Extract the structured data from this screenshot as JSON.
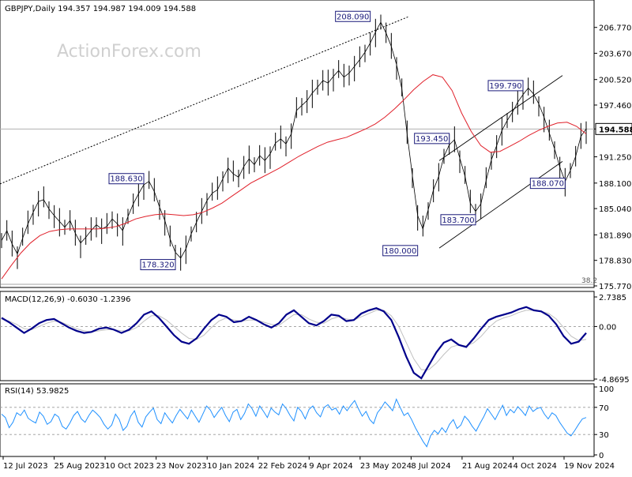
{
  "chart_data": [
    {
      "type": "candlestick",
      "title": "GBPJPY,Daily  194.357 194.987 194.009 194.588",
      "watermark": "ActionForex.com",
      "y_axis_ticks": [
        "206.770",
        "203.670",
        "200.520",
        "197.460",
        "194.588",
        "191.250",
        "188.100",
        "185.040",
        "181.890",
        "178.830",
        "175.770"
      ],
      "current_price": "194.588",
      "ylim": [
        175.77,
        209.3
      ],
      "price_series_approx": [
        181.2,
        182.4,
        180.8,
        179.6,
        181.5,
        183.2,
        184.6,
        185.9,
        186.1,
        185.0,
        184.2,
        183.5,
        182.8,
        183.6,
        182.1,
        180.9,
        181.6,
        182.4,
        183.1,
        182.6,
        182.9,
        183.8,
        183.2,
        182.4,
        184.1,
        185.6,
        186.8,
        187.9,
        188.3,
        187.1,
        185.2,
        183.6,
        181.4,
        179.8,
        179.1,
        180.2,
        182.0,
        183.4,
        184.7,
        186.0,
        186.9,
        187.3,
        188.6,
        189.9,
        189.2,
        188.8,
        190.1,
        191.0,
        190.3,
        191.4,
        190.8,
        191.6,
        192.9,
        193.4,
        192.8,
        194.0,
        196.8,
        197.4,
        198.0,
        198.9,
        199.6,
        200.4,
        200.1,
        200.9,
        201.6,
        200.8,
        201.3,
        202.1,
        202.9,
        203.8,
        204.9,
        206.2,
        207.4,
        206.1,
        204.5,
        202.3,
        199.4,
        194.0,
        189.0,
        184.2,
        182.6,
        184.9,
        187.3,
        188.9,
        191.3,
        192.7,
        193.3,
        191.1,
        188.9,
        185.7,
        184.7,
        185.6,
        188.4,
        190.9,
        192.6,
        194.4,
        195.6,
        196.6,
        197.8,
        198.7,
        199.5,
        198.8,
        197.6,
        196.0,
        194.1,
        192.2,
        190.0,
        188.3,
        189.6,
        191.3,
        193.7,
        194.6
      ],
      "ma_series_approx": [
        176.6,
        178.2,
        179.7,
        180.9,
        181.8,
        182.3,
        182.5,
        182.6,
        182.6,
        182.6,
        182.6,
        182.7,
        182.9,
        183.3,
        183.8,
        184.1,
        184.3,
        184.4,
        184.3,
        184.2,
        184.3,
        184.6,
        185.1,
        185.7,
        186.5,
        187.3,
        188.1,
        188.7,
        189.3,
        189.9,
        190.6,
        191.3,
        191.9,
        192.5,
        193.0,
        193.3,
        193.6,
        194.1,
        194.6,
        195.2,
        196.0,
        197.0,
        198.1,
        199.3,
        200.3,
        201.1,
        200.8,
        199.2,
        196.5,
        194.3,
        192.6,
        191.8,
        191.9,
        192.5,
        193.1,
        193.8,
        194.4,
        194.9,
        195.3,
        195.4,
        194.9,
        194.0
      ],
      "annotations": [
        {
          "label": "208.090",
          "value": 208.09,
          "anchor": "right"
        },
        {
          "label": "188.630",
          "value": 188.63,
          "anchor": "right"
        },
        {
          "label": "178.320",
          "value": 178.32,
          "anchor": "right"
        },
        {
          "label": "193.450",
          "value": 193.45,
          "anchor": "right"
        },
        {
          "label": "183.700",
          "value": 183.7,
          "anchor": "right"
        },
        {
          "label": "180.000",
          "value": 180.0,
          "anchor": "right"
        },
        {
          "label": "199.790",
          "value": 199.79,
          "anchor": "right"
        },
        {
          "label": "188.070",
          "value": 188.07,
          "anchor": "right"
        }
      ],
      "fib_label": "38.2",
      "colors": {
        "price": "#000000",
        "ma": "#e0202a",
        "grid": "#c0c0c0",
        "annotation_bg": "#ffffff",
        "annotation_border": "#1a1a7a",
        "annotation_text": "#1a1a7a",
        "dotted": "#000000"
      }
    },
    {
      "type": "line",
      "title": "MACD(12,26,9) -0.6030 -1.2396",
      "y_axis_ticks": [
        "2.7385",
        "0.00",
        "-4.8695"
      ],
      "ylim": [
        -4.8695,
        2.7385
      ],
      "macd_series_approx": [
        0.8,
        0.4,
        -0.1,
        -0.6,
        -0.2,
        0.3,
        0.6,
        0.7,
        0.3,
        -0.1,
        -0.4,
        -0.6,
        -0.5,
        -0.2,
        -0.1,
        -0.3,
        -0.6,
        -0.3,
        0.3,
        1.1,
        1.4,
        0.8,
        0.0,
        -0.8,
        -1.4,
        -1.6,
        -1.1,
        -0.2,
        0.6,
        1.1,
        0.9,
        0.4,
        0.5,
        0.9,
        0.6,
        0.2,
        -0.1,
        0.3,
        1.1,
        1.5,
        0.9,
        0.3,
        0.1,
        0.5,
        1.1,
        1.0,
        0.5,
        0.6,
        1.2,
        1.5,
        1.7,
        1.4,
        0.6,
        -1.0,
        -2.8,
        -4.3,
        -4.8,
        -3.6,
        -2.4,
        -1.5,
        -1.2,
        -1.7,
        -1.9,
        -1.1,
        -0.2,
        0.6,
        0.9,
        1.1,
        1.3,
        1.6,
        1.8,
        1.5,
        1.4,
        1.0,
        0.2,
        -0.9,
        -1.6,
        -1.4,
        -0.6
      ],
      "signal_series_approx": [
        0.7,
        0.5,
        0.2,
        -0.2,
        -0.3,
        0.0,
        0.3,
        0.5,
        0.4,
        0.1,
        -0.2,
        -0.4,
        -0.5,
        -0.4,
        -0.3,
        -0.3,
        -0.4,
        -0.4,
        -0.1,
        0.5,
        1.0,
        1.0,
        0.6,
        0.0,
        -0.6,
        -1.1,
        -1.2,
        -0.8,
        -0.1,
        0.5,
        0.8,
        0.6,
        0.5,
        0.6,
        0.6,
        0.4,
        0.2,
        0.1,
        0.6,
        1.1,
        1.1,
        0.7,
        0.4,
        0.3,
        0.7,
        0.9,
        0.7,
        0.6,
        0.9,
        1.2,
        1.5,
        1.5,
        1.0,
        0.0,
        -1.5,
        -3.0,
        -4.0,
        -4.0,
        -3.4,
        -2.6,
        -1.9,
        -1.7,
        -1.8,
        -1.5,
        -0.9,
        -0.1,
        0.5,
        0.8,
        1.0,
        1.3,
        1.5,
        1.5,
        1.4,
        1.2,
        0.7,
        -0.1,
        -0.9,
        -1.3,
        -1.2
      ],
      "colors": {
        "macd": "#00008b",
        "signal": "#c0c0c0"
      }
    },
    {
      "type": "line",
      "title": "RSI(14) 53.9825",
      "y_axis_ticks": [
        "100",
        "70",
        "30",
        "0"
      ],
      "ylim": [
        0,
        100
      ],
      "levels": [
        70,
        30
      ],
      "rsi_series_approx": [
        60,
        55,
        40,
        48,
        62,
        58,
        66,
        54,
        50,
        47,
        63,
        57,
        45,
        49,
        60,
        56,
        42,
        38,
        47,
        58,
        64,
        53,
        48,
        58,
        66,
        61,
        55,
        45,
        38,
        44,
        60,
        52,
        36,
        42,
        57,
        65,
        48,
        41,
        56,
        63,
        69,
        52,
        46,
        62,
        54,
        47,
        58,
        67,
        60,
        53,
        66,
        57,
        48,
        60,
        72,
        66,
        55,
        63,
        70,
        58,
        49,
        63,
        67,
        52,
        61,
        75,
        68,
        57,
        72,
        64,
        55,
        69,
        63,
        59,
        75,
        68,
        58,
        50,
        70,
        64,
        53,
        67,
        72,
        62,
        56,
        70,
        74,
        66,
        69,
        60,
        72,
        65,
        73,
        80,
        68,
        57,
        64,
        52,
        46,
        62,
        69,
        78,
        72,
        65,
        82,
        70,
        58,
        62,
        52,
        40,
        30,
        20,
        12,
        28,
        36,
        31,
        40,
        33,
        45,
        52,
        39,
        44,
        57,
        51,
        42,
        35,
        46,
        56,
        68,
        60,
        52,
        63,
        73,
        58,
        67,
        62,
        71,
        65,
        58,
        72,
        64,
        68,
        70,
        60,
        53,
        62,
        58,
        48,
        40,
        32,
        28,
        36,
        45,
        53,
        55
      ]
    }
  ],
  "x_axis": {
    "labels": [
      "12 Jul 2023",
      "25 Aug 2023",
      "10 Oct 2023",
      "23 Nov 2023",
      "10 Jan 2024",
      "22 Feb 2024",
      "9 Apr 2024",
      "23 May 2024",
      "8 Jul 2024",
      "21 Aug 2024",
      "4 Oct 2024",
      "19 Nov 2024"
    ]
  }
}
